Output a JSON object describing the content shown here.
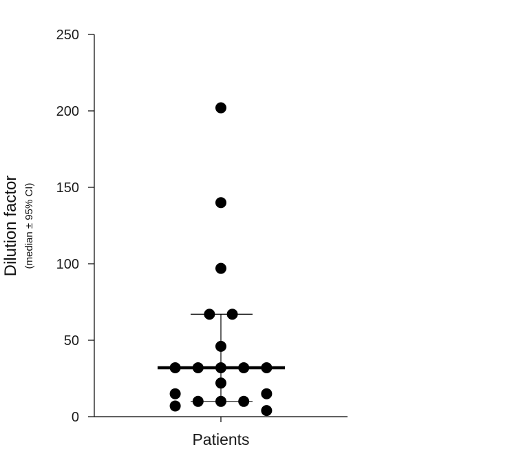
{
  "chart_data": {
    "type": "scatter",
    "ylabel": "Dilution factor",
    "ylabel_sub": "(median ± 95% CI)",
    "ylim": [
      0,
      250
    ],
    "yticks": [
      0,
      50,
      100,
      150,
      200,
      250
    ],
    "categories": [
      "Patients"
    ],
    "points": [
      {
        "x_offset": 0,
        "y": 202
      },
      {
        "x_offset": 0,
        "y": 140
      },
      {
        "x_offset": 0,
        "y": 97
      },
      {
        "x_offset": -1,
        "y": 67
      },
      {
        "x_offset": 1,
        "y": 67
      },
      {
        "x_offset": 0,
        "y": 46
      },
      {
        "x_offset": -4,
        "y": 32
      },
      {
        "x_offset": -2,
        "y": 32
      },
      {
        "x_offset": 0,
        "y": 32
      },
      {
        "x_offset": 2,
        "y": 32
      },
      {
        "x_offset": 4,
        "y": 32
      },
      {
        "x_offset": 0,
        "y": 22
      },
      {
        "x_offset": -4,
        "y": 15
      },
      {
        "x_offset": 4,
        "y": 15
      },
      {
        "x_offset": -2,
        "y": 10
      },
      {
        "x_offset": 0,
        "y": 10
      },
      {
        "x_offset": 2,
        "y": 10
      },
      {
        "x_offset": -4,
        "y": 7
      },
      {
        "x_offset": 4,
        "y": 4
      }
    ],
    "median": 32,
    "ci": [
      10,
      67
    ],
    "grid": false,
    "color": "#000000"
  }
}
